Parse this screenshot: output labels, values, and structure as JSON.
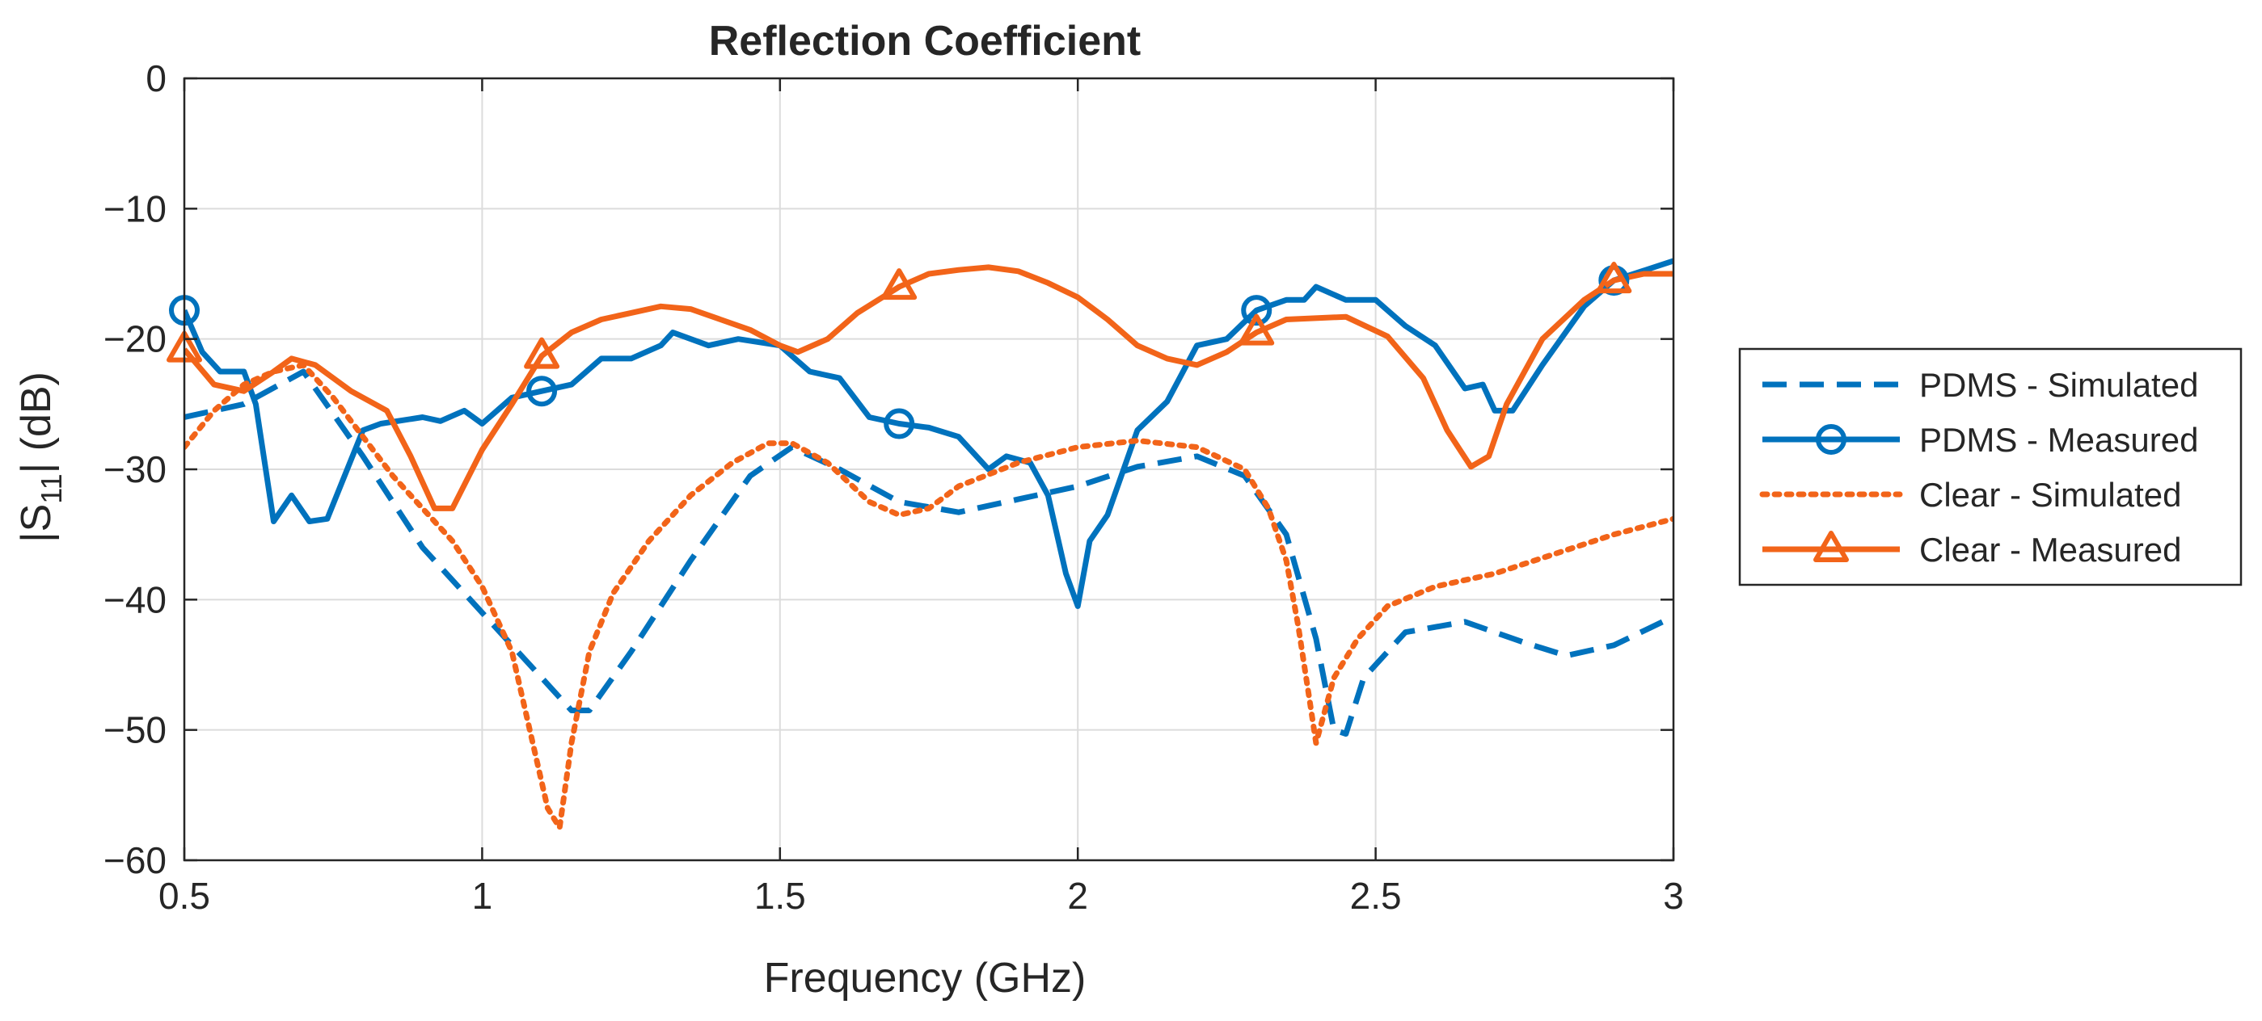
{
  "chart_data": {
    "type": "line",
    "title": "Reflection Coefficient",
    "xlabel": "Frequency (GHz)",
    "ylabel": {
      "prefix": "|S",
      "sub": "11",
      "suffix": "| (dB)"
    },
    "xlim": [
      0.5,
      3
    ],
    "ylim": [
      -60,
      0
    ],
    "xticks": [
      0.5,
      1,
      1.5,
      2,
      2.5,
      3
    ],
    "xtick_labels": [
      "0.5",
      "1",
      "1.5",
      "2",
      "2.5",
      "3"
    ],
    "yticks": [
      0,
      -10,
      -20,
      -30,
      -40,
      -50,
      -60
    ],
    "ytick_labels": [
      "0",
      "−10",
      "−20",
      "−30",
      "−40",
      "−50",
      "−60"
    ],
    "grid": true,
    "legend_position": "outside-right",
    "series": [
      {
        "name": "PDMS - Simulated",
        "color": "#0072BD",
        "line": "dashed",
        "marker": "none",
        "points": [
          [
            0.5,
            -26
          ],
          [
            0.6,
            -25
          ],
          [
            0.7,
            -22.5
          ],
          [
            0.8,
            -29
          ],
          [
            0.9,
            -36
          ],
          [
            1.0,
            -41
          ],
          [
            1.05,
            -43.5
          ],
          [
            1.1,
            -46
          ],
          [
            1.15,
            -48.5
          ],
          [
            1.18,
            -48.5
          ],
          [
            1.25,
            -44
          ],
          [
            1.35,
            -37
          ],
          [
            1.45,
            -30.5
          ],
          [
            1.52,
            -28.3
          ],
          [
            1.6,
            -30
          ],
          [
            1.7,
            -32.5
          ],
          [
            1.8,
            -33.3
          ],
          [
            1.9,
            -32.3
          ],
          [
            2.0,
            -31.3
          ],
          [
            2.1,
            -29.8
          ],
          [
            2.2,
            -29
          ],
          [
            2.28,
            -30.5
          ],
          [
            2.35,
            -35
          ],
          [
            2.4,
            -43
          ],
          [
            2.43,
            -50
          ],
          [
            2.45,
            -50.3
          ],
          [
            2.48,
            -46
          ],
          [
            2.55,
            -42.5
          ],
          [
            2.65,
            -41.7
          ],
          [
            2.75,
            -43.3
          ],
          [
            2.82,
            -44.3
          ],
          [
            2.9,
            -43.5
          ],
          [
            3.0,
            -41.3
          ]
        ]
      },
      {
        "name": "PDMS - Measured",
        "color": "#0072BD",
        "line": "solid",
        "marker": "circle",
        "markers_at": [
          0.5,
          1.1,
          1.7,
          2.3,
          2.9
        ],
        "points": [
          [
            0.5,
            -17.8
          ],
          [
            0.53,
            -21
          ],
          [
            0.56,
            -22.5
          ],
          [
            0.6,
            -22.5
          ],
          [
            0.62,
            -25
          ],
          [
            0.65,
            -34
          ],
          [
            0.68,
            -32
          ],
          [
            0.71,
            -34
          ],
          [
            0.74,
            -33.8
          ],
          [
            0.8,
            -27
          ],
          [
            0.83,
            -26.5
          ],
          [
            0.9,
            -26
          ],
          [
            0.93,
            -26.3
          ],
          [
            0.97,
            -25.5
          ],
          [
            1.0,
            -26.5
          ],
          [
            1.05,
            -24.5
          ],
          [
            1.1,
            -24
          ],
          [
            1.15,
            -23.5
          ],
          [
            1.2,
            -21.5
          ],
          [
            1.25,
            -21.5
          ],
          [
            1.3,
            -20.5
          ],
          [
            1.32,
            -19.5
          ],
          [
            1.38,
            -20.5
          ],
          [
            1.43,
            -20
          ],
          [
            1.5,
            -20.5
          ],
          [
            1.55,
            -22.5
          ],
          [
            1.6,
            -23
          ],
          [
            1.65,
            -26
          ],
          [
            1.7,
            -26.5
          ],
          [
            1.75,
            -26.8
          ],
          [
            1.8,
            -27.5
          ],
          [
            1.85,
            -30
          ],
          [
            1.88,
            -29
          ],
          [
            1.92,
            -29.5
          ],
          [
            1.95,
            -32
          ],
          [
            1.98,
            -38
          ],
          [
            2.0,
            -40.5
          ],
          [
            2.02,
            -35.5
          ],
          [
            2.05,
            -33.5
          ],
          [
            2.1,
            -27
          ],
          [
            2.15,
            -24.8
          ],
          [
            2.2,
            -20.5
          ],
          [
            2.25,
            -20
          ],
          [
            2.3,
            -17.8
          ],
          [
            2.35,
            -17
          ],
          [
            2.38,
            -17
          ],
          [
            2.4,
            -16
          ],
          [
            2.45,
            -17
          ],
          [
            2.5,
            -17
          ],
          [
            2.55,
            -19
          ],
          [
            2.6,
            -20.5
          ],
          [
            2.65,
            -23.8
          ],
          [
            2.68,
            -23.5
          ],
          [
            2.7,
            -25.5
          ],
          [
            2.73,
            -25.5
          ],
          [
            2.78,
            -22
          ],
          [
            2.85,
            -17.5
          ],
          [
            2.9,
            -15.5
          ],
          [
            3.0,
            -14
          ]
        ]
      },
      {
        "name": "Clear - Simulated",
        "color": "#F26419",
        "line": "dotted",
        "marker": "none",
        "points": [
          [
            0.5,
            -28.3
          ],
          [
            0.55,
            -25.5
          ],
          [
            0.6,
            -23.5
          ],
          [
            0.65,
            -22.5
          ],
          [
            0.7,
            -22
          ],
          [
            0.75,
            -24.5
          ],
          [
            0.8,
            -27.5
          ],
          [
            0.85,
            -30.5
          ],
          [
            0.9,
            -33
          ],
          [
            0.95,
            -35.5
          ],
          [
            1.0,
            -39
          ],
          [
            1.05,
            -44
          ],
          [
            1.08,
            -50
          ],
          [
            1.11,
            -56
          ],
          [
            1.13,
            -57.5
          ],
          [
            1.15,
            -51
          ],
          [
            1.18,
            -44
          ],
          [
            1.22,
            -39.5
          ],
          [
            1.28,
            -35.5
          ],
          [
            1.35,
            -32
          ],
          [
            1.42,
            -29.5
          ],
          [
            1.48,
            -28
          ],
          [
            1.52,
            -28
          ],
          [
            1.58,
            -29.5
          ],
          [
            1.65,
            -32.5
          ],
          [
            1.7,
            -33.5
          ],
          [
            1.75,
            -33
          ],
          [
            1.8,
            -31.3
          ],
          [
            1.9,
            -29.5
          ],
          [
            2.0,
            -28.3
          ],
          [
            2.1,
            -27.8
          ],
          [
            2.2,
            -28.3
          ],
          [
            2.28,
            -30
          ],
          [
            2.32,
            -33
          ],
          [
            2.35,
            -37
          ],
          [
            2.37,
            -42
          ],
          [
            2.39,
            -48
          ],
          [
            2.4,
            -51
          ],
          [
            2.43,
            -46
          ],
          [
            2.47,
            -43
          ],
          [
            2.52,
            -40.5
          ],
          [
            2.6,
            -39
          ],
          [
            2.7,
            -38
          ],
          [
            2.8,
            -36.5
          ],
          [
            2.9,
            -35
          ],
          [
            3.0,
            -33.8
          ]
        ]
      },
      {
        "name": "Clear - Measured",
        "color": "#F26419",
        "line": "solid",
        "marker": "triangle",
        "markers_at": [
          0.5,
          1.1,
          1.7,
          2.3,
          2.9
        ],
        "points": [
          [
            0.5,
            -20.8
          ],
          [
            0.55,
            -23.5
          ],
          [
            0.6,
            -24
          ],
          [
            0.65,
            -22.5
          ],
          [
            0.68,
            -21.5
          ],
          [
            0.72,
            -22
          ],
          [
            0.78,
            -24
          ],
          [
            0.84,
            -25.5
          ],
          [
            0.88,
            -29
          ],
          [
            0.92,
            -33
          ],
          [
            0.95,
            -33
          ],
          [
            1.0,
            -28.5
          ],
          [
            1.05,
            -25
          ],
          [
            1.1,
            -21.3
          ],
          [
            1.15,
            -19.5
          ],
          [
            1.2,
            -18.5
          ],
          [
            1.25,
            -18
          ],
          [
            1.3,
            -17.5
          ],
          [
            1.35,
            -17.7
          ],
          [
            1.4,
            -18.5
          ],
          [
            1.45,
            -19.3
          ],
          [
            1.5,
            -20.5
          ],
          [
            1.53,
            -21
          ],
          [
            1.58,
            -20
          ],
          [
            1.63,
            -18
          ],
          [
            1.7,
            -16
          ],
          [
            1.75,
            -15
          ],
          [
            1.8,
            -14.7
          ],
          [
            1.85,
            -14.5
          ],
          [
            1.9,
            -14.8
          ],
          [
            1.95,
            -15.7
          ],
          [
            2.0,
            -16.8
          ],
          [
            2.05,
            -18.5
          ],
          [
            2.1,
            -20.5
          ],
          [
            2.15,
            -21.5
          ],
          [
            2.2,
            -22
          ],
          [
            2.25,
            -21
          ],
          [
            2.3,
            -19.5
          ],
          [
            2.35,
            -18.5
          ],
          [
            2.45,
            -18.3
          ],
          [
            2.52,
            -19.8
          ],
          [
            2.58,
            -23
          ],
          [
            2.62,
            -27
          ],
          [
            2.66,
            -29.8
          ],
          [
            2.69,
            -29
          ],
          [
            2.72,
            -25
          ],
          [
            2.78,
            -20
          ],
          [
            2.85,
            -17
          ],
          [
            2.9,
            -15.5
          ],
          [
            2.95,
            -15
          ],
          [
            3.0,
            -15
          ]
        ]
      }
    ]
  }
}
